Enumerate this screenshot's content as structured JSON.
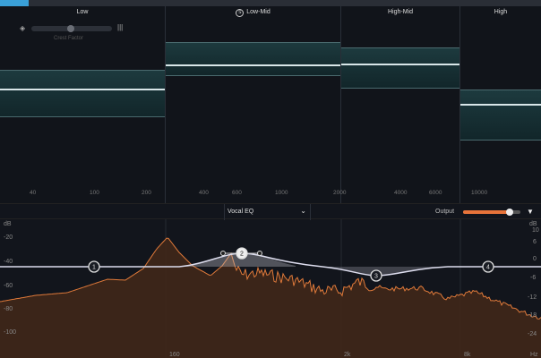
{
  "bands": [
    {
      "name": "Low",
      "solo": false
    },
    {
      "name": "Low-Mid",
      "solo": true,
      "solo_label": "S"
    },
    {
      "name": "High-Mid",
      "solo": false
    },
    {
      "name": "High",
      "solo": false
    }
  ],
  "crest_factor_label": "Crest Factor",
  "freq_labels": [
    "40",
    "100",
    "200",
    "400",
    "600",
    "1000",
    "2000",
    "4000",
    "6000",
    "10000"
  ],
  "toolbar": {
    "preset": "Vocal EQ",
    "output_label": "Output",
    "output_level": 0.82
  },
  "graph": {
    "left_db_unit": "dB",
    "left_db": [
      "-20",
      "-40",
      "-60",
      "-80",
      "-100"
    ],
    "right_db_unit": "dB",
    "right_db": [
      "10",
      "6",
      "0",
      "-6",
      "-12",
      "-18",
      "-24"
    ],
    "x_labels": [
      "160",
      "2k",
      "8k",
      "Hz"
    ],
    "nodes": [
      "1",
      "2",
      "3",
      "4"
    ]
  },
  "colors": {
    "accent": "#e8743a",
    "band": "#1d3a3e",
    "node": "#ffffff"
  }
}
